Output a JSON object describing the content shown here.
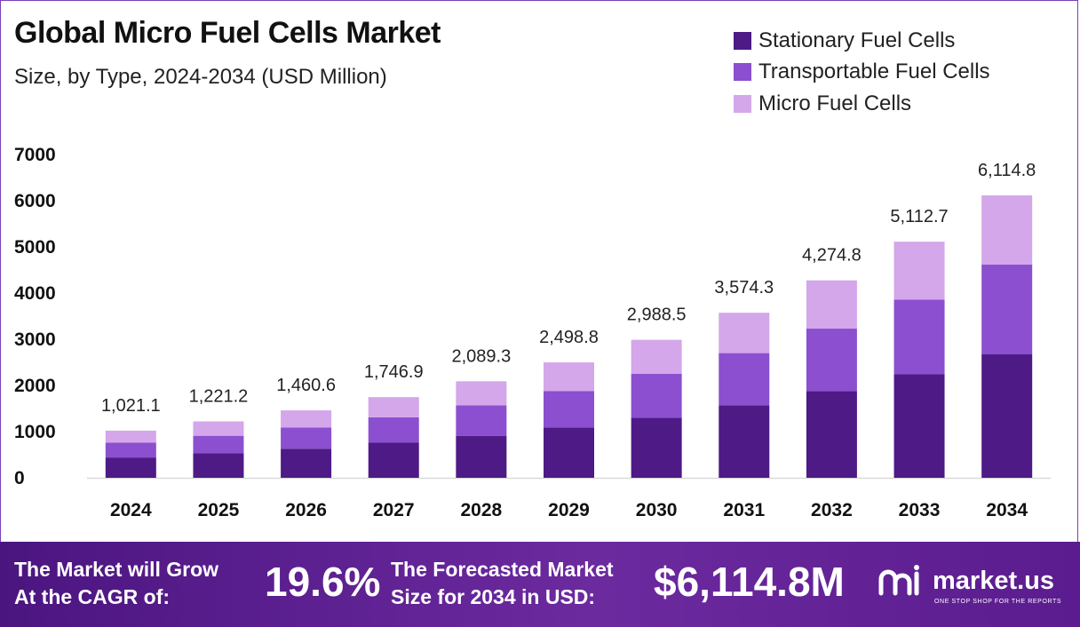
{
  "header": {
    "title": "Global Micro Fuel Cells Market",
    "subtitle": "Size, by Type, 2024-2034 (USD Million)"
  },
  "legend": [
    {
      "label": "Stationary Fuel Cells",
      "color": "#4e1a86"
    },
    {
      "label": "Transportable Fuel Cells",
      "color": "#8b4fcf"
    },
    {
      "label": "Micro Fuel Cells",
      "color": "#d3a7ea"
    }
  ],
  "chart_data": {
    "type": "bar",
    "stacked": true,
    "title": "Global Micro Fuel Cells Market",
    "subtitle": "Size, by Type, 2024-2034 (USD Million)",
    "xlabel": "",
    "ylabel": "",
    "ylim": [
      0,
      7000
    ],
    "yticks": [
      0,
      1000,
      2000,
      3000,
      4000,
      5000,
      6000,
      7000
    ],
    "grid": false,
    "legend_position": "top-right",
    "categories": [
      "2024",
      "2025",
      "2026",
      "2027",
      "2028",
      "2029",
      "2030",
      "2031",
      "2032",
      "2033",
      "2034"
    ],
    "series": [
      {
        "name": "Stationary Fuel Cells",
        "color": "#4e1a86",
        "values": [
          440,
          530,
          630,
          760,
          910,
          1090,
          1300,
          1570,
          1880,
          2240,
          2680
        ]
      },
      {
        "name": "Transportable Fuel Cells",
        "color": "#8b4fcf",
        "values": [
          320,
          380,
          460,
          550,
          660,
          790,
          950,
          1130,
          1350,
          1620,
          1940
        ]
      },
      {
        "name": "Micro Fuel Cells",
        "color": "#d3a7ea",
        "values": [
          261.1,
          311.2,
          370.6,
          436.9,
          519.3,
          618.8,
          738.5,
          874.3,
          1044.8,
          1252.7,
          1494.8
        ]
      }
    ],
    "totals": [
      1021.1,
      1221.2,
      1460.6,
      1746.9,
      2089.3,
      2498.8,
      2988.5,
      3574.3,
      4274.8,
      5112.7,
      6114.8
    ],
    "total_labels": [
      "1,021.1",
      "1,221.2",
      "1,460.6",
      "1,746.9",
      "2,089.3",
      "2,498.8",
      "2,988.5",
      "3,574.3",
      "4,274.8",
      "5,112.7",
      "6,114.8"
    ]
  },
  "footer": {
    "cagr_label_line1": "The Market will Grow",
    "cagr_label_line2": "At the CAGR of:",
    "cagr_value": "19.6%",
    "forecast_label_line1": "The Forecasted Market",
    "forecast_label_line2": "Size for 2034 in USD:",
    "forecast_value": "$6,114.8M",
    "brand_name": "market.us",
    "brand_tagline": "ONE STOP SHOP FOR THE REPORTS",
    "brand_logo": "market-us-logo-icon"
  }
}
